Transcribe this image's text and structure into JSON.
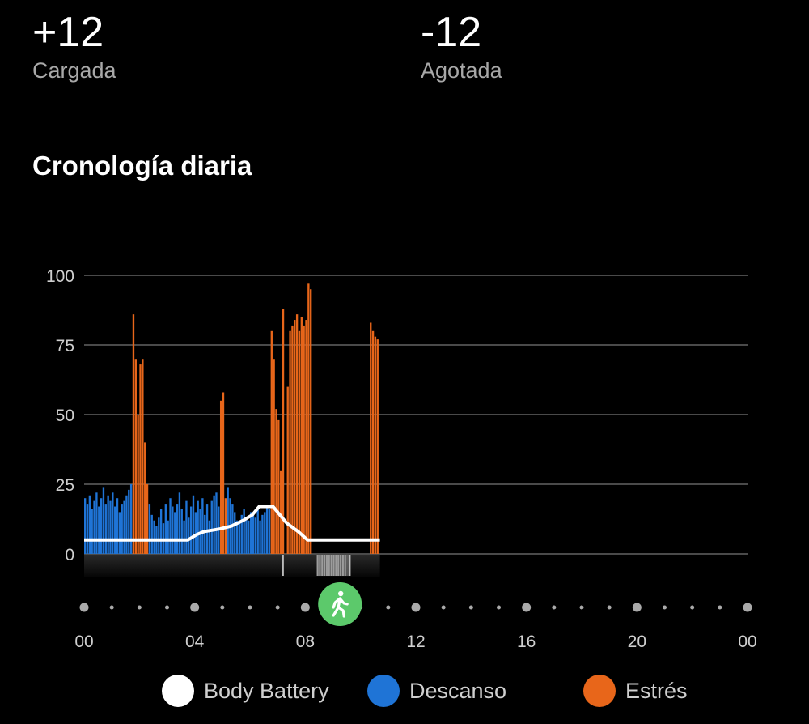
{
  "summary": {
    "charged": {
      "value": "+12",
      "label": "Cargada"
    },
    "drained": {
      "value": "-12",
      "label": "Agotada"
    }
  },
  "section_title": "Cronología diaria",
  "colors": {
    "body_battery": "#ffffff",
    "rest": "#1f74d6",
    "stress": "#e8661a",
    "activity": "#5cc96b",
    "grid": "#4a4a4a"
  },
  "activity_icon": "walking-person-icon",
  "chart_data": {
    "type": "bar",
    "ylim": [
      0,
      100
    ],
    "yticks": [
      "0",
      "25",
      "50",
      "75",
      "100"
    ],
    "xlim": [
      "00:00",
      "24:00"
    ],
    "xticks": [
      "00",
      "04",
      "08",
      "12",
      "16",
      "20",
      "00"
    ],
    "grid": true,
    "legend_position": "bottom",
    "bar_interval_minutes": 5,
    "segments": [
      {
        "start": "00:00",
        "type": "rest",
        "values": [
          20,
          18,
          21,
          16,
          19,
          22,
          17,
          20,
          24,
          18,
          21,
          19,
          22,
          17,
          20,
          15,
          18,
          19,
          21,
          23,
          25
        ]
      },
      {
        "start": "01:45",
        "type": "stress",
        "values": [
          86,
          70,
          50,
          68,
          70,
          40,
          25
        ]
      },
      {
        "start": "02:20",
        "type": "rest",
        "values": [
          18,
          14,
          12,
          10,
          13,
          16,
          11,
          18,
          12,
          20,
          17,
          15,
          18,
          22,
          16,
          12,
          19,
          13,
          17,
          21,
          15,
          19,
          16,
          20,
          14,
          18,
          12,
          19,
          21,
          22,
          17
        ]
      },
      {
        "start": "04:55",
        "type": "stress",
        "values": [
          55,
          58,
          20
        ]
      },
      {
        "start": "05:10",
        "type": "rest",
        "values": [
          24,
          20,
          18,
          15,
          12,
          11,
          14,
          16,
          13,
          12,
          15,
          14,
          13,
          16,
          12,
          14,
          15,
          17,
          16
        ]
      },
      {
        "start": "06:45",
        "type": "stress",
        "values": [
          80,
          70,
          52,
          48,
          30
        ]
      },
      {
        "start": "07:10",
        "type": "stress",
        "values": [
          88
        ]
      },
      {
        "start": "07:20",
        "type": "stress",
        "values": [
          60,
          80,
          82,
          84,
          86,
          80,
          85,
          82,
          84,
          97,
          95
        ]
      },
      {
        "start": "10:20",
        "type": "stress",
        "values": [
          83,
          80,
          78,
          77
        ]
      }
    ],
    "body_battery": [
      [
        "00:00",
        5
      ],
      [
        "03:45",
        5
      ],
      [
        "04:05",
        7
      ],
      [
        "04:20",
        8
      ],
      [
        "04:55",
        9
      ],
      [
        "05:20",
        10
      ],
      [
        "05:45",
        12
      ],
      [
        "06:05",
        14
      ],
      [
        "06:20",
        17
      ],
      [
        "06:50",
        17
      ],
      [
        "07:20",
        11
      ],
      [
        "07:45",
        8
      ],
      [
        "08:05",
        5
      ],
      [
        "10:42",
        5
      ]
    ],
    "activity_marks": [
      "07:10",
      "08:25",
      "08:30",
      "08:35",
      "08:40",
      "08:45",
      "08:50",
      "08:55",
      "09:00",
      "09:05",
      "09:10",
      "09:15",
      "09:20",
      "09:25",
      "09:35"
    ],
    "activity_time": "09:10",
    "series": [
      {
        "name": "Body Battery"
      },
      {
        "name": "Descanso"
      },
      {
        "name": "Estrés"
      }
    ]
  }
}
